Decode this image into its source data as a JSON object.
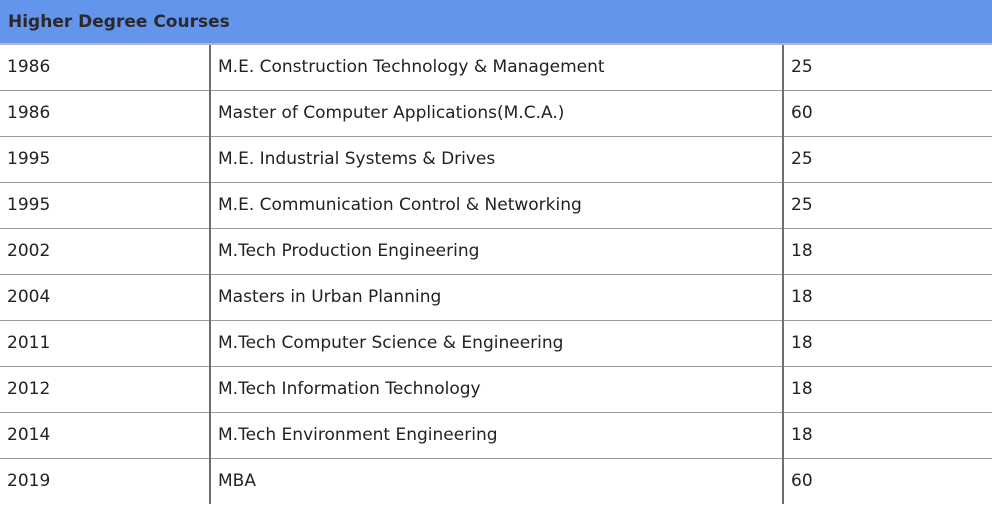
{
  "table": {
    "title": "Higher Degree Courses",
    "rows": [
      {
        "year": "1986",
        "course": "M.E. Construction Technology & Management",
        "seats": "25"
      },
      {
        "year": "1986",
        "course": "Master of Computer Applications(M.C.A.)",
        "seats": "60"
      },
      {
        "year": "1995",
        "course": "M.E. Industrial Systems & Drives",
        "seats": "25"
      },
      {
        "year": "1995",
        "course": "M.E. Communication Control & Networking",
        "seats": "25"
      },
      {
        "year": "2002",
        "course": "M.Tech Production Engineering",
        "seats": "18"
      },
      {
        "year": "2004",
        "course": "Masters in Urban Planning",
        "seats": "18"
      },
      {
        "year": "2011",
        "course": "M.Tech Computer Science & Engineering",
        "seats": "18"
      },
      {
        "year": "2012",
        "course": "M.Tech Information Technology",
        "seats": "18"
      },
      {
        "year": "2014",
        "course": "M.Tech Environment Engineering",
        "seats": "18"
      },
      {
        "year": "2019",
        "course": "MBA",
        "seats": "60"
      }
    ]
  },
  "colors": {
    "header_bg": "#6495ed",
    "header_text": "#2a2a2a",
    "body_text": "#222222",
    "grid_line": "#9a9a9a"
  }
}
